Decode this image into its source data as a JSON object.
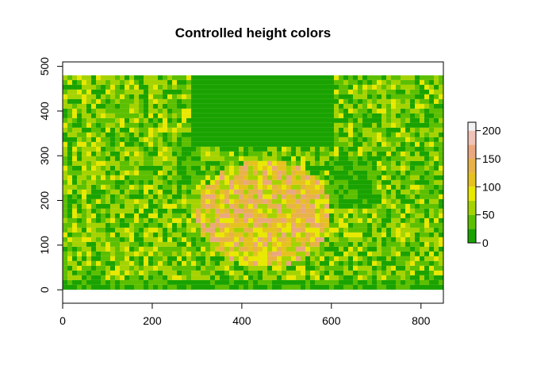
{
  "chart_data": {
    "type": "heatmap",
    "title": "Controlled height colors",
    "xlabel": "",
    "ylabel": "",
    "xlim": [
      0,
      850
    ],
    "ylim": [
      -30,
      510
    ],
    "raster_extent": {
      "x": [
        0,
        850
      ],
      "y": [
        0,
        480
      ]
    },
    "x_ticks": [
      0,
      200,
      400,
      600,
      800
    ],
    "y_ticks": [
      0,
      100,
      200,
      300,
      400,
      500
    ],
    "grid": false,
    "legend": {
      "placement": "right",
      "ticks": [
        0,
        50,
        100,
        150,
        200
      ],
      "breaks": [
        0,
        25,
        50,
        75,
        100,
        125,
        150,
        175,
        200,
        215
      ],
      "colors": [
        "#1aa300",
        "#5cbf00",
        "#a5d300",
        "#e8e800",
        "#e6c21f",
        "#e8b249",
        "#eba87e",
        "#f0c3b6",
        "#f2f2f2"
      ]
    },
    "regions_description_values": {
      "background_mean": 45,
      "tree_top_mean": 10,
      "tree_shadow_mean": 20,
      "crown_mean": 110
    }
  }
}
